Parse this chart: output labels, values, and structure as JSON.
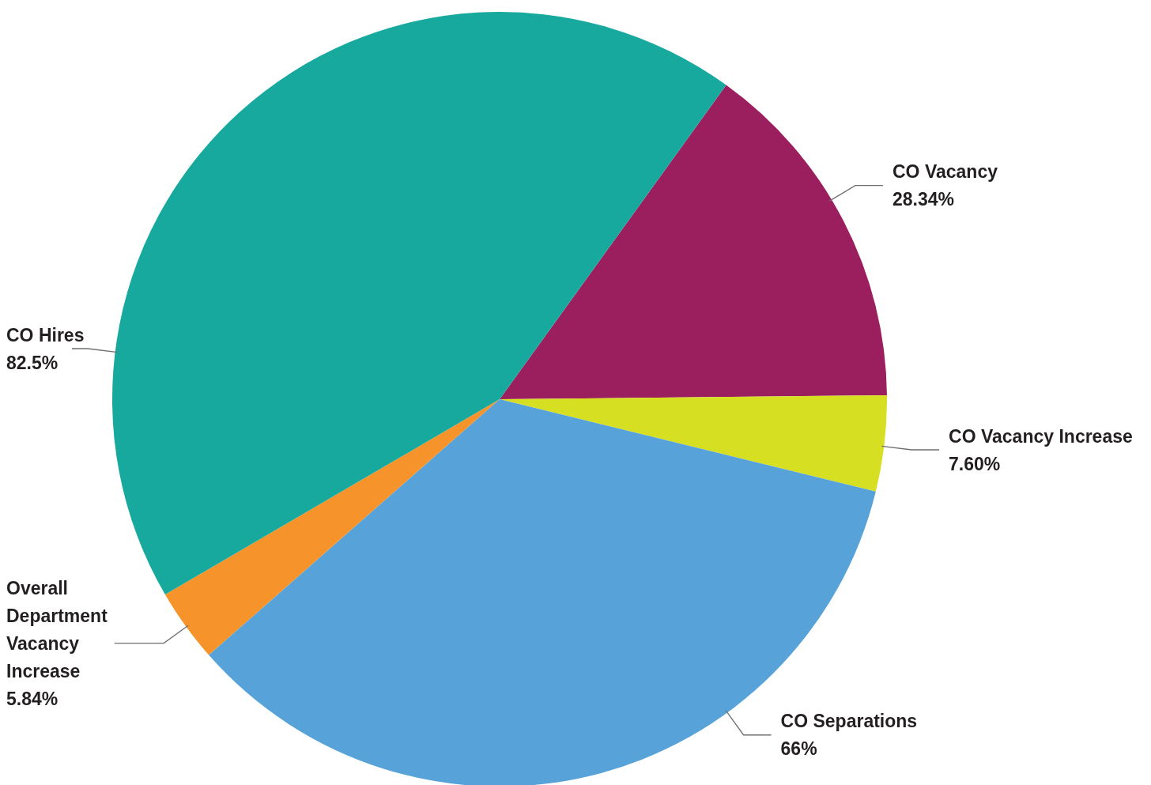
{
  "chart_data": {
    "type": "pie",
    "categories": [
      "CO Vacancy",
      "CO Vacancy Increase",
      "CO Separations",
      "Overall Department Vacancy Increase",
      "CO Hires"
    ],
    "values": [
      28.34,
      7.6,
      66,
      5.84,
      82.5
    ],
    "value_labels": [
      "28.34%",
      "7.60%",
      "66%",
      "5.84%",
      "82.5%"
    ],
    "colors": [
      "#9b1f5e",
      "#d7df23",
      "#57a3d9",
      "#f6932a",
      "#17a99d"
    ]
  }
}
